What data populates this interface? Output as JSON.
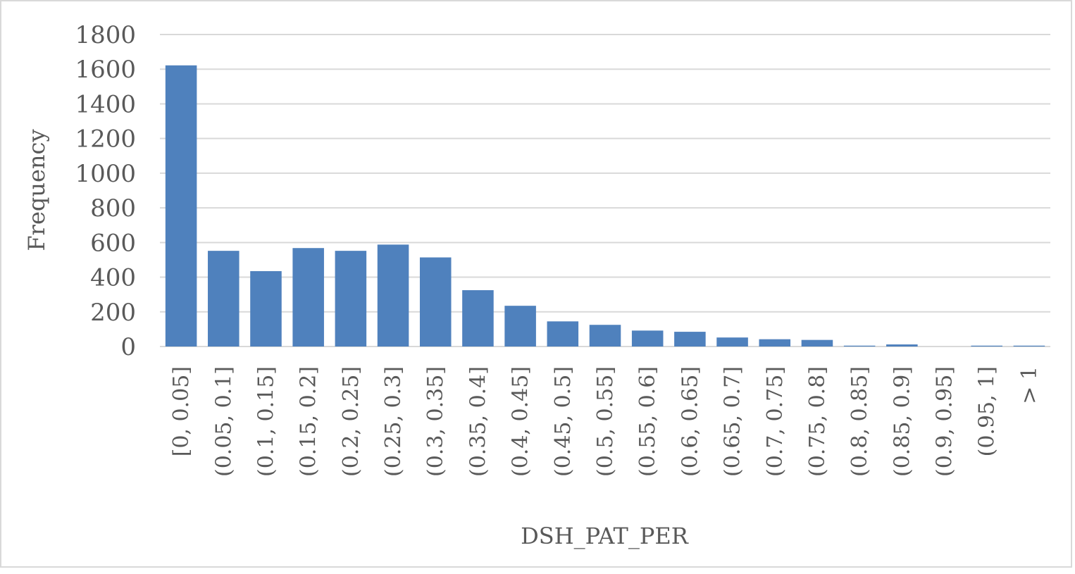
{
  "chart_data": {
    "type": "bar",
    "title": "",
    "xlabel": "DSH_PAT_PER",
    "ylabel": "Frequency",
    "ylim": [
      0,
      1800
    ],
    "yticks": [
      0,
      200,
      400,
      600,
      800,
      1000,
      1200,
      1400,
      1600,
      1800
    ],
    "grid": true,
    "legend": "none",
    "bar_color": "#4f81bd",
    "grid_color": "#d9d9d9",
    "categories": [
      "[0, 0.05]",
      "(0.05, 0.1]",
      "(0.1, 0.15]",
      "(0.15, 0.2]",
      "(0.2, 0.25]",
      "(0.25, 0.3]",
      "(0.3, 0.35]",
      "(0.35, 0.4]",
      "(0.4, 0.45]",
      "(0.45, 0.5]",
      "(0.5, 0.55]",
      "(0.55, 0.6]",
      "(0.6, 0.65]",
      "(0.65, 0.7]",
      "(0.7, 0.75]",
      "(0.75, 0.8]",
      "(0.8, 0.85]",
      "(0.85, 0.9]",
      "(0.9, 0.95]",
      "(0.95, 1]",
      "> 1"
    ],
    "values": [
      1622,
      552,
      435,
      568,
      552,
      588,
      514,
      325,
      235,
      145,
      125,
      92,
      85,
      52,
      42,
      38,
      5,
      12,
      0,
      5,
      5
    ]
  }
}
